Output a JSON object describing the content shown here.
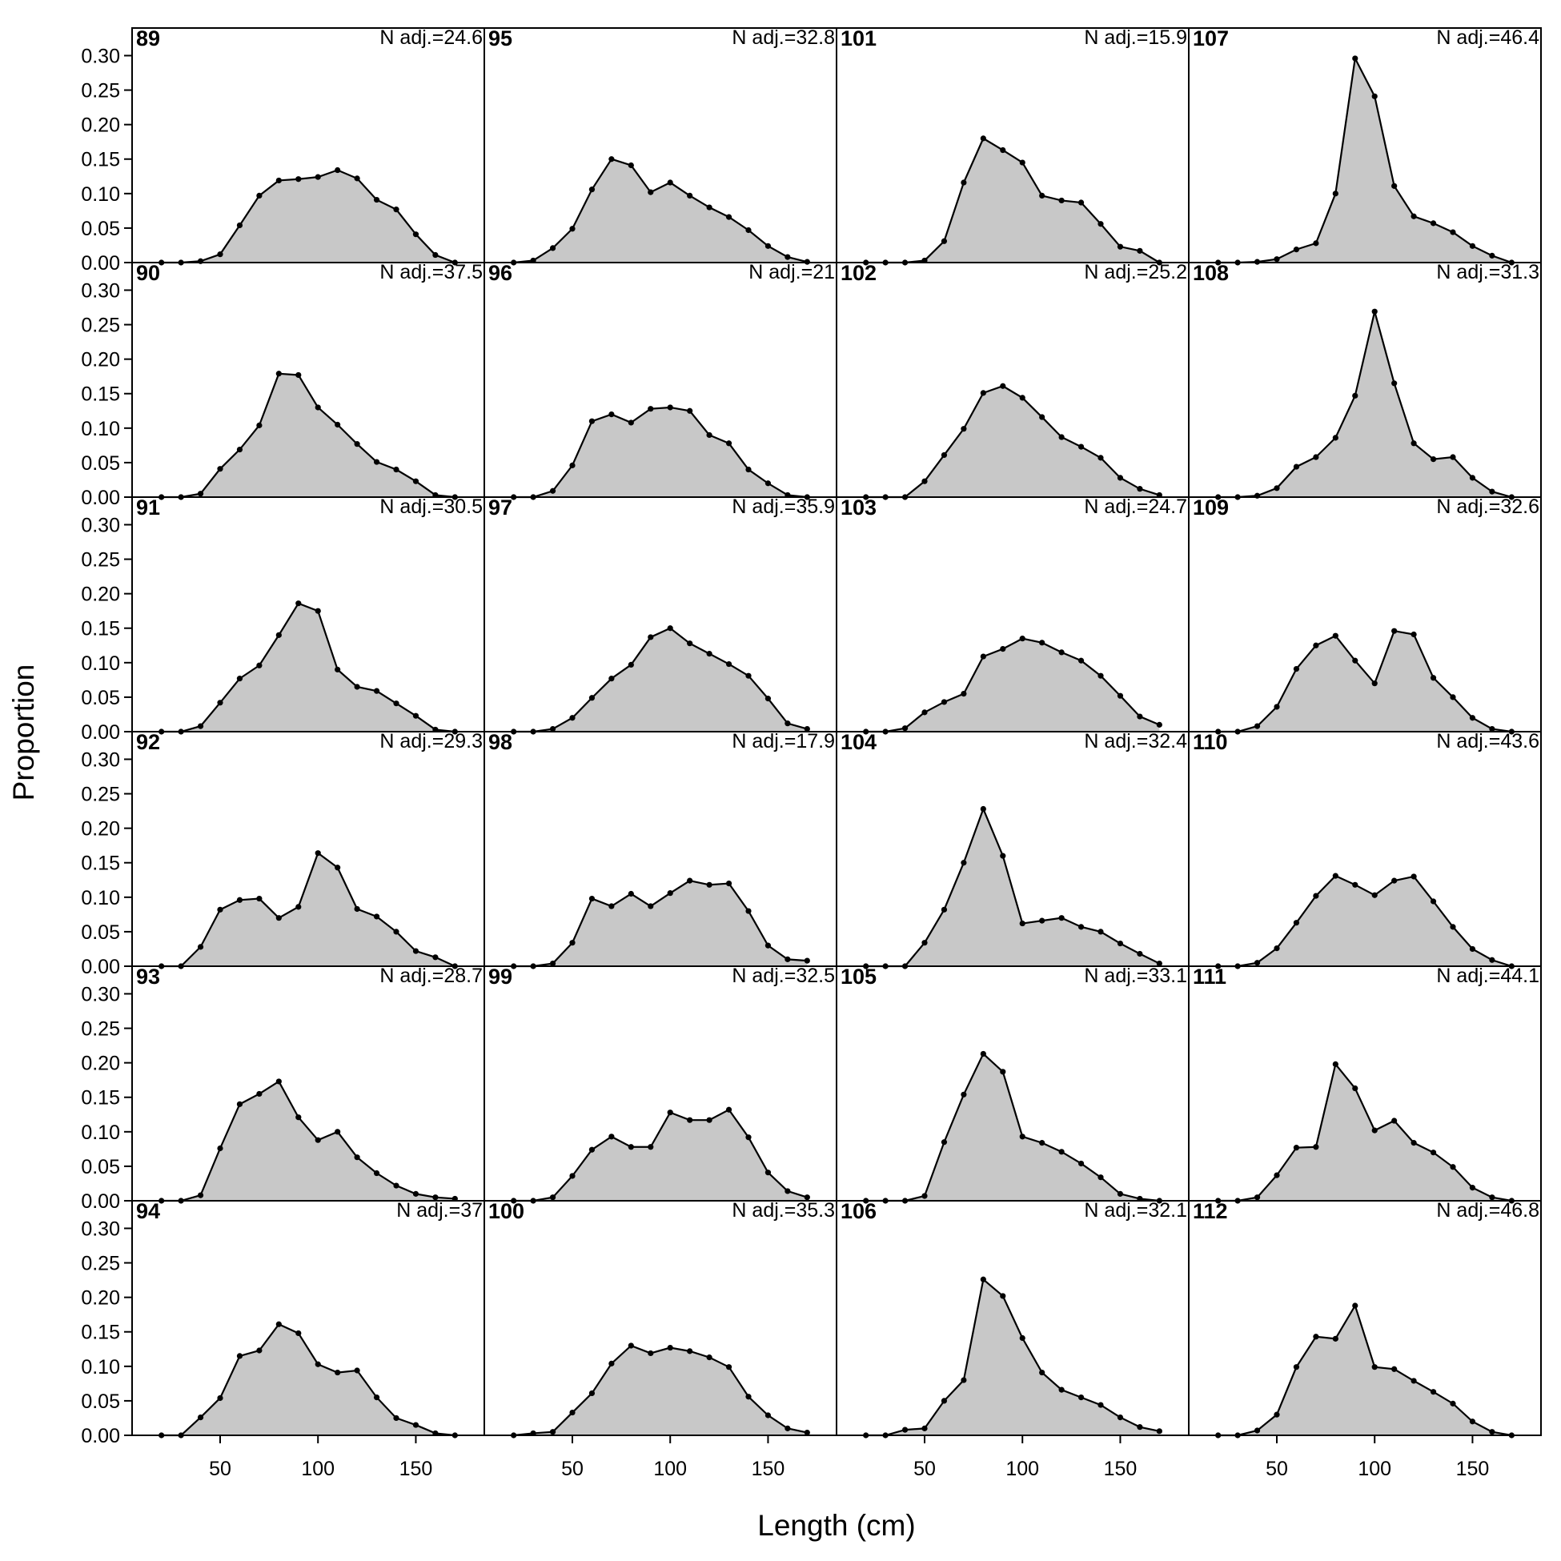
{
  "chart_data": {
    "type": "area",
    "xlabel": "Length (cm)",
    "ylabel": "Proportion",
    "x": [
      20,
      30,
      40,
      50,
      60,
      70,
      80,
      90,
      100,
      110,
      120,
      130,
      140,
      150,
      160,
      170
    ],
    "xlim": [
      5,
      185
    ],
    "ylim": [
      0,
      0.34
    ],
    "xticks": [
      50,
      100,
      150
    ],
    "yticks": [
      {
        "value": 0,
        "label": "0.00"
      },
      {
        "value": 0.05,
        "label": "0.05"
      },
      {
        "value": 0.1,
        "label": "0.10"
      },
      {
        "value": 0.15,
        "label": "0.15"
      },
      {
        "value": 0.2,
        "label": "0.20"
      },
      {
        "value": 0.25,
        "label": "0.25"
      },
      {
        "value": 0.3,
        "label": "0.30"
      }
    ],
    "fill_color": "#c8c8c8",
    "line_color": "#000000",
    "columns": 4,
    "rows": 6,
    "panels": [
      {
        "title": "89",
        "annotation": "N adj.=24.6",
        "values": [
          0,
          0,
          0.002,
          0.012,
          0.054,
          0.097,
          0.119,
          0.121,
          0.124,
          0.134,
          0.122,
          0.091,
          0.077,
          0.041,
          0.011,
          0
        ]
      },
      {
        "title": "90",
        "annotation": "N adj.=37.5",
        "values": [
          0,
          0,
          0.005,
          0.041,
          0.069,
          0.104,
          0.179,
          0.177,
          0.13,
          0.105,
          0.077,
          0.051,
          0.04,
          0.023,
          0.003,
          0
        ]
      },
      {
        "title": "91",
        "annotation": "N adj.=30.5",
        "values": [
          0,
          0,
          0.008,
          0.042,
          0.077,
          0.096,
          0.14,
          0.186,
          0.175,
          0.09,
          0.065,
          0.059,
          0.041,
          0.023,
          0.003,
          0
        ]
      },
      {
        "title": "92",
        "annotation": "N adj.=29.3",
        "values": [
          0,
          0,
          0.028,
          0.082,
          0.096,
          0.098,
          0.07,
          0.086,
          0.164,
          0.143,
          0.083,
          0.072,
          0.05,
          0.022,
          0.013,
          0
        ]
      },
      {
        "title": "93",
        "annotation": "N adj.=28.7",
        "values": [
          0,
          0,
          0.008,
          0.076,
          0.14,
          0.155,
          0.173,
          0.121,
          0.088,
          0.1,
          0.063,
          0.04,
          0.022,
          0.01,
          0.005,
          0.003
        ]
      },
      {
        "title": "94",
        "annotation": "N adj.=37",
        "values": [
          0,
          0,
          0.026,
          0.054,
          0.115,
          0.123,
          0.161,
          0.148,
          0.103,
          0.091,
          0.094,
          0.055,
          0.025,
          0.015,
          0.003,
          0
        ]
      },
      {
        "title": "95",
        "annotation": "N adj.=32.8",
        "values": [
          0,
          0.003,
          0.021,
          0.049,
          0.106,
          0.15,
          0.141,
          0.102,
          0.116,
          0.097,
          0.08,
          0.066,
          0.047,
          0.024,
          0.008,
          0.001
        ]
      },
      {
        "title": "96",
        "annotation": "N adj.=21",
        "values": [
          0,
          0,
          0.009,
          0.046,
          0.11,
          0.12,
          0.108,
          0.128,
          0.13,
          0.125,
          0.09,
          0.078,
          0.04,
          0.02,
          0.003,
          0
        ]
      },
      {
        "title": "97",
        "annotation": "N adj.=35.9",
        "values": [
          0,
          0,
          0.004,
          0.02,
          0.049,
          0.077,
          0.097,
          0.137,
          0.15,
          0.128,
          0.113,
          0.098,
          0.081,
          0.048,
          0.012,
          0.004
        ]
      },
      {
        "title": "98",
        "annotation": "N adj.=17.9",
        "values": [
          0,
          0,
          0.004,
          0.034,
          0.098,
          0.087,
          0.105,
          0.087,
          0.106,
          0.124,
          0.118,
          0.12,
          0.08,
          0.03,
          0.01,
          0.008
        ]
      },
      {
        "title": "99",
        "annotation": "N adj.=32.5",
        "values": [
          0,
          0,
          0.005,
          0.036,
          0.074,
          0.093,
          0.078,
          0.078,
          0.128,
          0.117,
          0.117,
          0.132,
          0.092,
          0.041,
          0.014,
          0.005
        ]
      },
      {
        "title": "100",
        "annotation": "N adj.=35.3",
        "values": [
          0,
          0.003,
          0.005,
          0.033,
          0.061,
          0.104,
          0.13,
          0.119,
          0.127,
          0.122,
          0.113,
          0.099,
          0.056,
          0.029,
          0.01,
          0.004
        ]
      },
      {
        "title": "101",
        "annotation": "N adj.=15.9",
        "values": [
          0,
          0,
          0,
          0.003,
          0.031,
          0.116,
          0.18,
          0.163,
          0.145,
          0.097,
          0.09,
          0.087,
          0.056,
          0.023,
          0.017,
          0
        ]
      },
      {
        "title": "102",
        "annotation": "N adj.=25.2",
        "values": [
          0,
          0,
          0,
          0.023,
          0.061,
          0.099,
          0.151,
          0.161,
          0.144,
          0.116,
          0.087,
          0.073,
          0.057,
          0.028,
          0.012,
          0.003
        ]
      },
      {
        "title": "103",
        "annotation": "N adj.=24.7",
        "values": [
          0,
          0,
          0.005,
          0.028,
          0.043,
          0.055,
          0.109,
          0.12,
          0.135,
          0.129,
          0.115,
          0.103,
          0.081,
          0.052,
          0.022,
          0.01
        ]
      },
      {
        "title": "104",
        "annotation": "N adj.=32.4",
        "values": [
          0,
          0,
          0,
          0.034,
          0.082,
          0.15,
          0.228,
          0.16,
          0.062,
          0.066,
          0.07,
          0.057,
          0.05,
          0.033,
          0.018,
          0.004
        ]
      },
      {
        "title": "105",
        "annotation": "N adj.=33.1",
        "values": [
          0,
          0,
          0,
          0.007,
          0.085,
          0.154,
          0.213,
          0.187,
          0.093,
          0.084,
          0.071,
          0.054,
          0.034,
          0.01,
          0.003,
          0
        ]
      },
      {
        "title": "106",
        "annotation": "N adj.=32.1",
        "values": [
          0,
          0,
          0.008,
          0.01,
          0.05,
          0.08,
          0.226,
          0.202,
          0.141,
          0.091,
          0.066,
          0.055,
          0.044,
          0.026,
          0.012,
          0.006
        ]
      },
      {
        "title": "107",
        "annotation": "N adj.=46.4",
        "values": [
          0,
          0,
          0.001,
          0.005,
          0.019,
          0.028,
          0.1,
          0.296,
          0.241,
          0.111,
          0.067,
          0.057,
          0.044,
          0.024,
          0.01,
          0
        ]
      },
      {
        "title": "108",
        "annotation": "N adj.=31.3",
        "values": [
          0,
          0,
          0.002,
          0.013,
          0.044,
          0.058,
          0.086,
          0.147,
          0.269,
          0.165,
          0.078,
          0.055,
          0.058,
          0.028,
          0.008,
          0
        ]
      },
      {
        "title": "109",
        "annotation": "N adj.=32.6",
        "values": [
          0,
          0,
          0.008,
          0.036,
          0.091,
          0.125,
          0.139,
          0.103,
          0.07,
          0.146,
          0.141,
          0.078,
          0.05,
          0.02,
          0.004,
          0
        ]
      },
      {
        "title": "110",
        "annotation": "N adj.=43.6",
        "values": [
          0,
          0,
          0.005,
          0.026,
          0.063,
          0.102,
          0.131,
          0.118,
          0.103,
          0.124,
          0.13,
          0.094,
          0.057,
          0.025,
          0.009,
          0
        ]
      },
      {
        "title": "111",
        "annotation": "N adj.=44.1",
        "values": [
          0,
          0,
          0.005,
          0.037,
          0.077,
          0.078,
          0.198,
          0.163,
          0.102,
          0.116,
          0.084,
          0.07,
          0.049,
          0.019,
          0.005,
          0
        ]
      },
      {
        "title": "112",
        "annotation": "N adj.=46.8",
        "values": [
          0,
          0,
          0.007,
          0.03,
          0.099,
          0.143,
          0.14,
          0.188,
          0.099,
          0.096,
          0.079,
          0.063,
          0.046,
          0.02,
          0.005,
          0
        ]
      }
    ]
  }
}
